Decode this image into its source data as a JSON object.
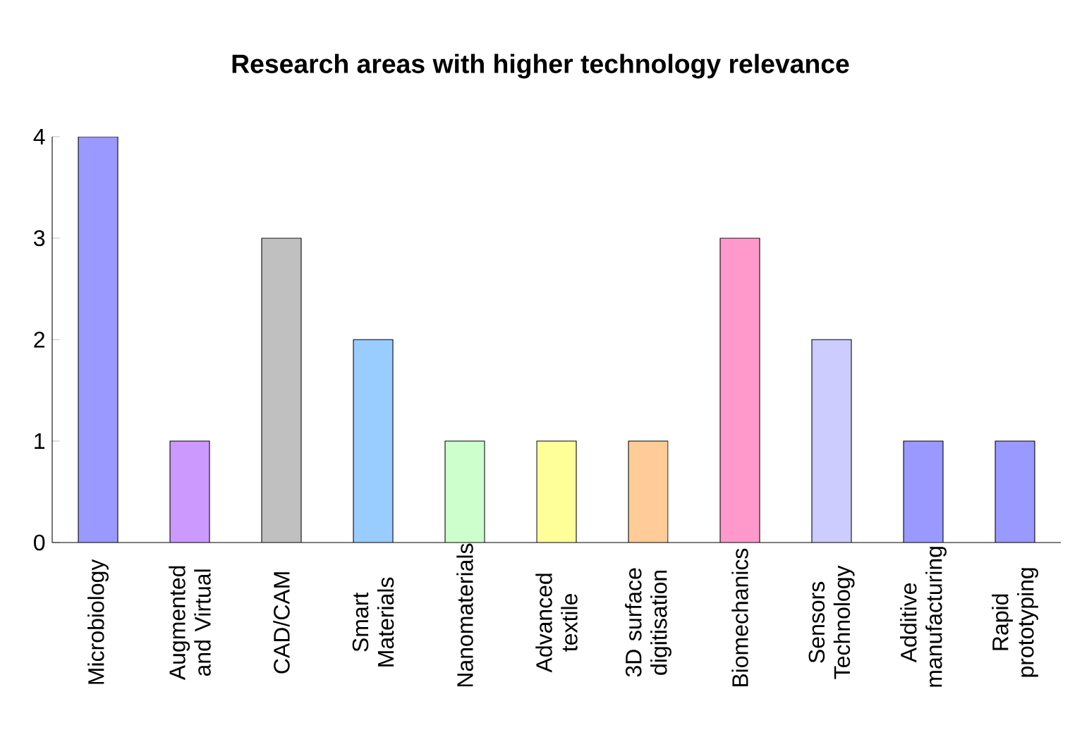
{
  "chart_data": {
    "type": "bar",
    "title": "Research areas with higher technology relevance",
    "categories": [
      "Microbiology",
      "Augmented and Virtual",
      "CAD/CAM",
      "Smart Materials",
      "Nanomaterials",
      "Advanced textile",
      "3D surface digitisation",
      "Biomechanics",
      "Sensors Technology",
      "Additive manufacturing",
      "Rapid prototyping"
    ],
    "values": [
      4,
      1,
      3,
      2,
      1,
      1,
      1,
      3,
      2,
      1,
      1
    ],
    "colors": [
      "#9999ff",
      "#cc99ff",
      "#c0c0c0",
      "#99ccff",
      "#ccffcc",
      "#ffff99",
      "#ffcc99",
      "#ff99cc",
      "#ccccff",
      "#9999ff",
      "#9999ff"
    ],
    "ylim": [
      0,
      4
    ],
    "yticks": [
      0,
      1,
      2,
      3,
      4
    ]
  }
}
